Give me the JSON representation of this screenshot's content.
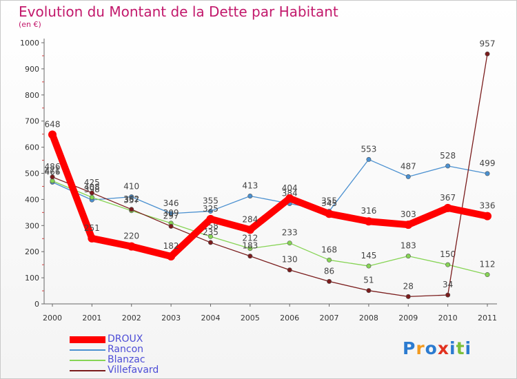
{
  "title": "Evolution du Montant de la Dette par Habitant",
  "subtitle": "(en €)",
  "logo": {
    "text": "Proxiti",
    "colors": [
      "#2b7bd0",
      "#f29a1f",
      "#2b7bd0",
      "#e2321f",
      "#2b7bd0",
      "#7cbf3a",
      "#2b7bd0"
    ]
  },
  "chart_data": {
    "type": "line",
    "x": [
      "2000",
      "2001",
      "2002",
      "2003",
      "2004",
      "2005",
      "2006",
      "2007",
      "2008",
      "2009",
      "2010",
      "2011"
    ],
    "yticks": [
      0,
      100,
      200,
      300,
      400,
      500,
      600,
      700,
      800,
      900,
      1000
    ],
    "ylim": [
      0,
      1000
    ],
    "grid": false,
    "legend_position": "bottom-left",
    "series": [
      {
        "name": "DROUX",
        "color": "#ff0000",
        "emphasis": true,
        "values": [
          648,
          251,
          220,
          182,
          325,
          284,
          404,
          345,
          316,
          303,
          367,
          336
        ]
      },
      {
        "name": "Rancon",
        "color": "#4a90d0",
        "values": [
          466,
          398,
          410,
          346,
          355,
          413,
          384,
          355,
          553,
          487,
          528,
          499
        ]
      },
      {
        "name": "Blanzac",
        "color": "#86d454",
        "values": [
          471,
          408,
          357,
          309,
          258,
          212,
          233,
          168,
          145,
          183,
          150,
          112
        ]
      },
      {
        "name": "Villefavard",
        "color": "#7a1c1c",
        "values": [
          486,
          425,
          362,
          297,
          235,
          183,
          130,
          86,
          51,
          28,
          34,
          957
        ]
      }
    ]
  }
}
